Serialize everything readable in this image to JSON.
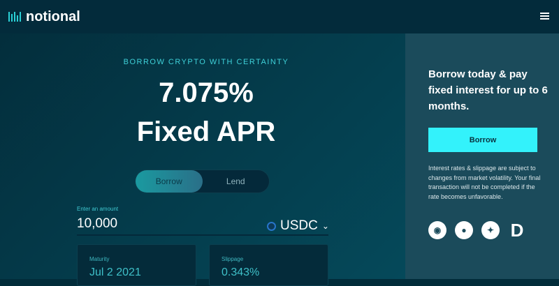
{
  "header": {
    "brand": "notional",
    "menu_icon": "hamburger-icon"
  },
  "hero": {
    "tagline": "BORROW CRYPTO WITH CERTAINTY",
    "rate": "7.075%",
    "rate_label": "Fixed APR"
  },
  "toggle": {
    "options": [
      "Borrow",
      "Lend"
    ],
    "selected": "Borrow"
  },
  "amount": {
    "label": "Enter an amount",
    "value": "10,000",
    "currency": "USDC",
    "currency_icon": "usdc-coin-icon"
  },
  "cards": [
    {
      "label": "Maturity",
      "value": "Jul 2 2021"
    },
    {
      "label": "Slippage",
      "value": "0.343%"
    }
  ],
  "sidebar": {
    "title": "Borrow today & pay fixed interest for up to 6 months.",
    "button": "Borrow",
    "note": "Interest rates & slippage are subject to changes from market volatility. Your final transaction will not be completed if the rate becomes unfavorable.",
    "social": [
      "discord-icon",
      "github-icon",
      "twitter-icon",
      "defipulse-icon"
    ]
  },
  "colors": {
    "accent": "#33f2fb",
    "header": "#032b3b",
    "sidebar": "#1b4b5b"
  }
}
